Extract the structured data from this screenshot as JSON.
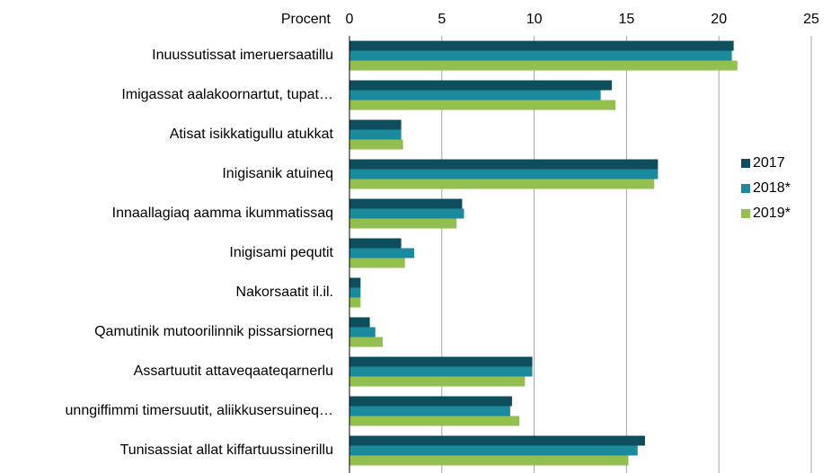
{
  "chart_data": {
    "type": "barh",
    "xlabel": "Procent",
    "categories": [
      "Inuussutissat imeruersaatillu",
      "Imigassat aalakoornartut, tupat…",
      "Atisat isikkatigullu atukkat",
      "Inigisanik atuineq",
      "Innaallagiaq aamma ikummatissaq",
      "Inigisami pequtit",
      "Nakorsaatit il.il.",
      "Qamutinik mutoorilinnik pissarsiorneq",
      "Assartuutit attaveqaateqarnerlu",
      "unngiffimmi timersuutit, aliikkusersuineq…",
      "Tunisassiat allat kiffartuussinerillu"
    ],
    "series": [
      {
        "name": "2017",
        "color": "#0d4d5c",
        "values": [
          20.8,
          14.2,
          2.8,
          16.7,
          6.1,
          2.8,
          0.6,
          1.1,
          9.9,
          8.8,
          16.0
        ]
      },
      {
        "name": "2018*",
        "color": "#1a8a9c",
        "values": [
          20.7,
          13.6,
          2.8,
          16.7,
          6.2,
          3.5,
          0.6,
          1.4,
          9.9,
          8.7,
          15.6
        ]
      },
      {
        "name": "2019*",
        "color": "#92bf4e",
        "values": [
          21.0,
          14.4,
          2.9,
          16.5,
          5.8,
          3.0,
          0.6,
          1.8,
          9.5,
          9.2,
          15.1
        ]
      }
    ],
    "xlim": [
      0,
      25
    ],
    "xticks": [
      0,
      5,
      10,
      15,
      20,
      25
    ],
    "grid": true,
    "legend": "right"
  }
}
